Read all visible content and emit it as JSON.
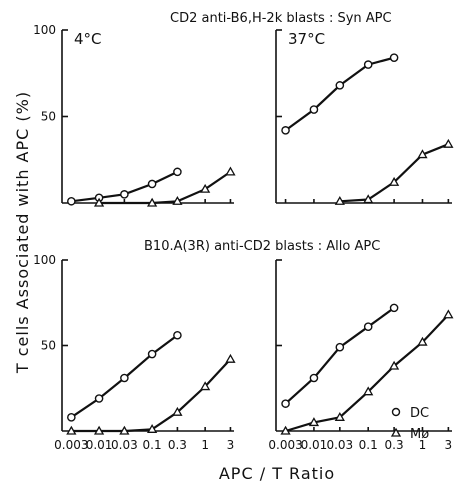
{
  "figure": {
    "ylabel": "T cells Associated with APC (%)",
    "xlabel": "APC / T Ratio",
    "row_titles": [
      "CD2 anti-B6,H-2k blasts : Syn APC",
      "B10.A(3R) anti-CD2 blasts : Allo APC"
    ]
  },
  "legend": [
    {
      "symbol": "circle",
      "label": "DC"
    },
    {
      "symbol": "triangle",
      "label": "Mø"
    }
  ],
  "chart_data": [
    {
      "type": "line",
      "row": 0,
      "col": 0,
      "annotation": "4°C",
      "title": "CD2 anti-B6,H-2k blasts : Syn APC",
      "xscale": "log",
      "xlim": [
        0.002,
        3.5
      ],
      "ylim": [
        0,
        100
      ],
      "yticks": [
        100,
        50
      ],
      "yticklabels": [
        "100",
        "50"
      ],
      "xticks": [],
      "xticklabels": [],
      "series": [
        {
          "name": "DC",
          "marker": "circle",
          "x": [
            0.003,
            0.01,
            0.03,
            0.1,
            0.3
          ],
          "y": [
            1,
            3,
            5,
            11,
            18
          ]
        },
        {
          "name": "Mø",
          "marker": "triangle",
          "x": [
            0.01,
            0.1,
            0.3,
            1,
            3
          ],
          "y": [
            0,
            0,
            1,
            8,
            18
          ]
        }
      ]
    },
    {
      "type": "line",
      "row": 0,
      "col": 1,
      "annotation": "37°C",
      "xscale": "log",
      "xlim": [
        0.002,
        3.5
      ],
      "ylim": [
        0,
        100
      ],
      "yticks": [],
      "yticklabels": [],
      "xticks": [],
      "xticklabels": [],
      "series": [
        {
          "name": "DC",
          "marker": "circle",
          "x": [
            0.003,
            0.01,
            0.03,
            0.1,
            0.3
          ],
          "y": [
            42,
            54,
            68,
            80,
            84
          ]
        },
        {
          "name": "Mø",
          "marker": "triangle",
          "x": [
            0.03,
            0.1,
            0.3,
            1,
            3
          ],
          "y": [
            1,
            2,
            12,
            28,
            34
          ]
        }
      ]
    },
    {
      "type": "line",
      "row": 1,
      "col": 0,
      "title": "B10.A(3R) anti-CD2 blasts : Allo APC",
      "xscale": "log",
      "xlim": [
        0.002,
        3.5
      ],
      "ylim": [
        0,
        100
      ],
      "yticks": [
        100,
        50
      ],
      "yticklabels": [
        "100",
        "50"
      ],
      "xticks": [
        0.003,
        0.01,
        0.03,
        0.1,
        0.3,
        1,
        3
      ],
      "xticklabels": [
        "0.003",
        "0.01",
        "0.03",
        "0.1",
        "0.3",
        "1",
        "3"
      ],
      "series": [
        {
          "name": "DC",
          "marker": "circle",
          "x": [
            0.003,
            0.01,
            0.03,
            0.1,
            0.3
          ],
          "y": [
            8,
            19,
            31,
            45,
            56
          ]
        },
        {
          "name": "Mø",
          "marker": "triangle",
          "x": [
            0.003,
            0.01,
            0.03,
            0.1,
            0.3,
            1,
            3
          ],
          "y": [
            0,
            0,
            0,
            1,
            11,
            26,
            42
          ]
        }
      ]
    },
    {
      "type": "line",
      "row": 1,
      "col": 1,
      "xscale": "log",
      "xlim": [
        0.002,
        3.5
      ],
      "ylim": [
        0,
        100
      ],
      "yticks": [],
      "yticklabels": [],
      "xticks": [
        0.003,
        0.01,
        0.03,
        0.1,
        0.3,
        1,
        3
      ],
      "xticklabels": [
        "0.003",
        "0.01",
        "0.03",
        "0.1",
        "0.3",
        "1",
        "3"
      ],
      "series": [
        {
          "name": "DC",
          "marker": "circle",
          "x": [
            0.003,
            0.01,
            0.03,
            0.1,
            0.3
          ],
          "y": [
            16,
            31,
            49,
            61,
            72
          ]
        },
        {
          "name": "Mø",
          "marker": "triangle",
          "x": [
            0.003,
            0.01,
            0.03,
            0.1,
            0.3,
            1,
            3
          ],
          "y": [
            0,
            5,
            8,
            23,
            38,
            52,
            68
          ]
        }
      ]
    }
  ]
}
